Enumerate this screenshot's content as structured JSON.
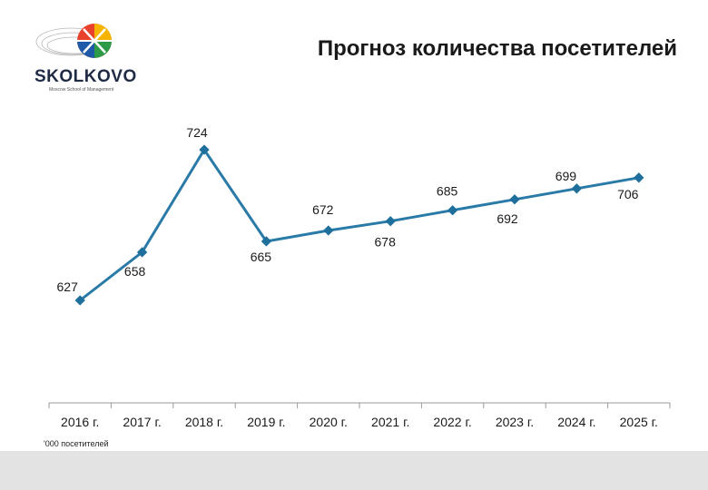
{
  "header": {
    "title": "Прогноз количества посетителей",
    "logo_text": "SKOLKOVO",
    "logo_subtext": "Moscow School of Management"
  },
  "chart_data": {
    "type": "line",
    "title": "Прогноз количества посетителей",
    "categories": [
      "2016 г.",
      "2017 г.",
      "2018 г.",
      "2019 г.",
      "2020 г.",
      "2021 г.",
      "2022 г.",
      "2023 г.",
      "2024 г.",
      "2025 г."
    ],
    "series": [
      {
        "values": [
          627,
          658,
          724,
          665,
          672,
          678,
          685,
          692,
          699,
          706
        ]
      }
    ],
    "data_labels": [
      "627",
      "658",
      "724",
      "665",
      "672",
      "678",
      "685",
      "692",
      "699",
      "706"
    ],
    "unit_note": "'000 посетителей",
    "line_color": "#2a7aa8",
    "marker_color": "#1f6f9c",
    "grid": false,
    "legend": "none"
  }
}
